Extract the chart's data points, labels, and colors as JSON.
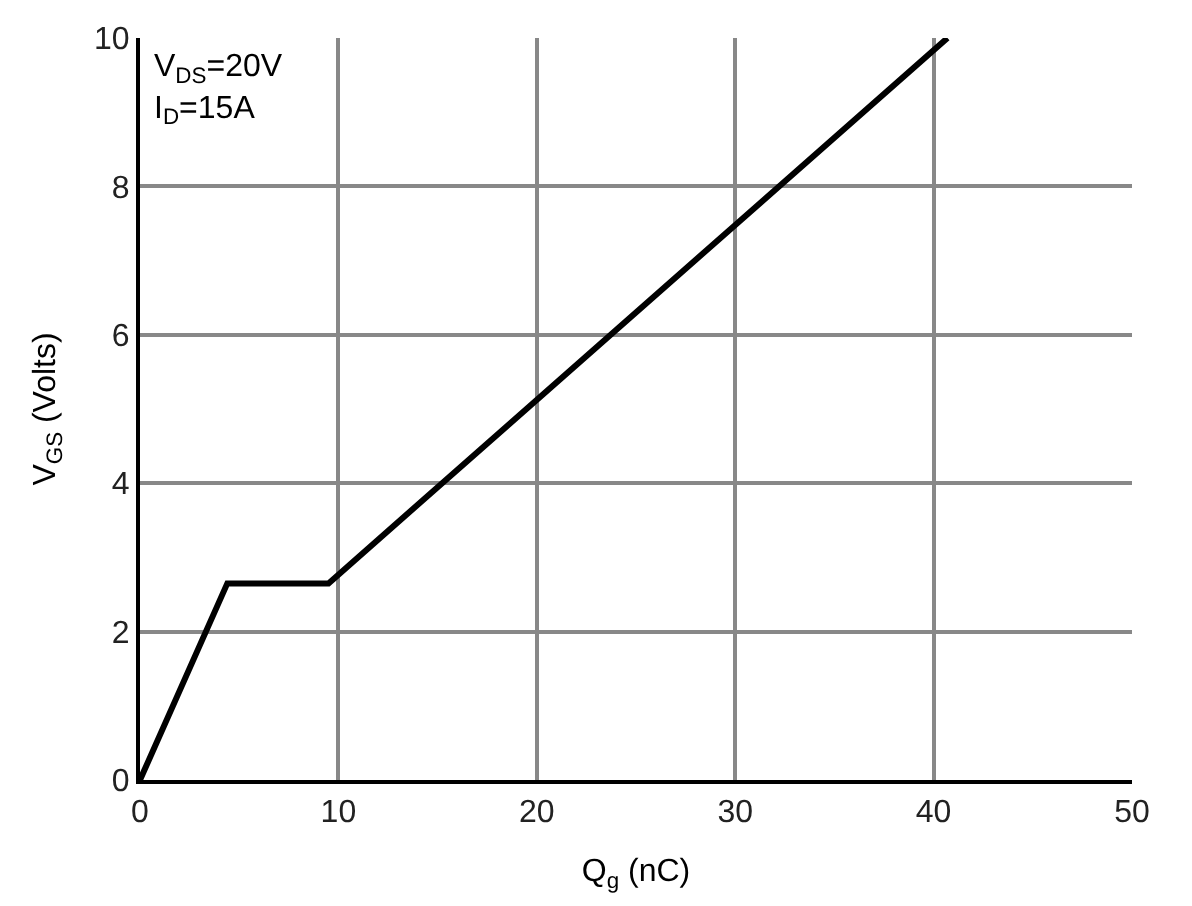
{
  "chart_data": {
    "type": "line",
    "xlabel": "Q$_{g}$ (nC)",
    "ylabel": "V$_{GS}$ (Volts)",
    "annotations": [
      "V$_{DS}$=20V\nI$_{D}$=15A"
    ],
    "x": [
      0,
      4.4,
      9.5,
      40.7
    ],
    "series": [
      {
        "color": "#000000",
        "values": [
          0,
          2.65,
          2.65,
          10
        ]
      }
    ],
    "xlim": [
      0,
      50
    ],
    "xticks": [
      0,
      10,
      20,
      30,
      40,
      50
    ],
    "ylim": [
      0,
      10
    ],
    "yticks": [
      0,
      2,
      4,
      6,
      8,
      10
    ],
    "grid": true,
    "marker": "none",
    "line_style": "solid"
  }
}
